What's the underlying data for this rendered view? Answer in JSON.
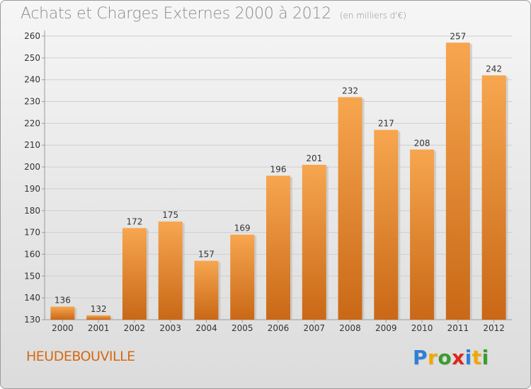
{
  "title": "Achats et Charges Externes 2000 à 2012",
  "subtitle": "(en milliers d'€)",
  "commune": "HEUDEBOUVILLE",
  "logo": {
    "letters": [
      "P",
      "r",
      "o",
      "x",
      "i",
      "t",
      "i"
    ],
    "colors": [
      "#2e7fd6",
      "#f0a800",
      "#3a9c2e",
      "#e0251b",
      "#2e7fd6",
      "#f0a800",
      "#3a9c2e"
    ]
  },
  "colors": {
    "bar_top": "#f7a64f",
    "bar_bottom": "#c96816",
    "grid": "#cfcfcf",
    "axis": "#9a9a9a"
  },
  "chart_data": {
    "type": "bar",
    "categories": [
      "2000",
      "2001",
      "2002",
      "2003",
      "2004",
      "2005",
      "2006",
      "2007",
      "2008",
      "2009",
      "2010",
      "2011",
      "2012"
    ],
    "values": [
      136,
      132,
      172,
      175,
      157,
      169,
      196,
      201,
      232,
      217,
      208,
      257,
      242
    ],
    "ylim": [
      130,
      260
    ],
    "yticks": [
      130,
      140,
      150,
      160,
      170,
      180,
      190,
      200,
      210,
      220,
      230,
      240,
      250,
      260
    ],
    "grid": true,
    "xlabel": "",
    "ylabel": ""
  }
}
